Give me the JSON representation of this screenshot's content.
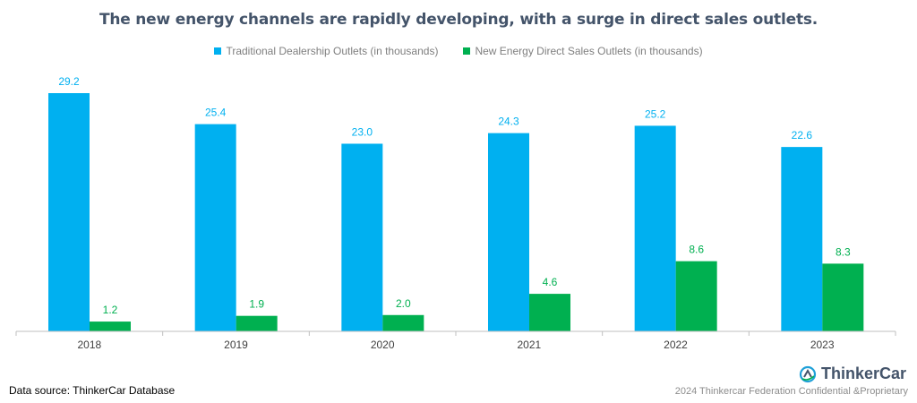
{
  "chart_data": {
    "type": "bar",
    "title": "The new energy channels are rapidly developing, with a surge in direct sales outlets.",
    "categories": [
      "2018",
      "2019",
      "2020",
      "2021",
      "2022",
      "2023"
    ],
    "series": [
      {
        "name": "Traditional Dealership Outlets (in thousands)",
        "color": "#00b0f0",
        "label_color": "#00b0f0",
        "values": [
          29.2,
          25.4,
          23.0,
          24.3,
          25.2,
          22.6
        ],
        "labels": [
          "29.2",
          "25.4",
          "23.0",
          "24.3",
          "25.2",
          "22.6"
        ]
      },
      {
        "name": "New Energy Direct Sales Outlets (in thousands)",
        "color": "#00b050",
        "label_color": "#00b050",
        "values": [
          1.2,
          1.9,
          2.0,
          4.6,
          8.6,
          8.3
        ],
        "labels": [
          "1.2",
          "1.9",
          "2.0",
          "4.6",
          "8.6",
          "8.3"
        ]
      }
    ],
    "ylim": [
      0,
      30
    ],
    "grid": false,
    "legend_position": "top-center",
    "axis_color": "#bfbfbf"
  },
  "footer": {
    "source": "Data source: ThinkerCar Database",
    "brand_name": "ThinkerCar",
    "brand_icon": "thinkercar-logo-icon",
    "brand_color": "#1fa0d8",
    "confidential": "2024 Thinkercar Federation Confidential &Proprietary"
  }
}
